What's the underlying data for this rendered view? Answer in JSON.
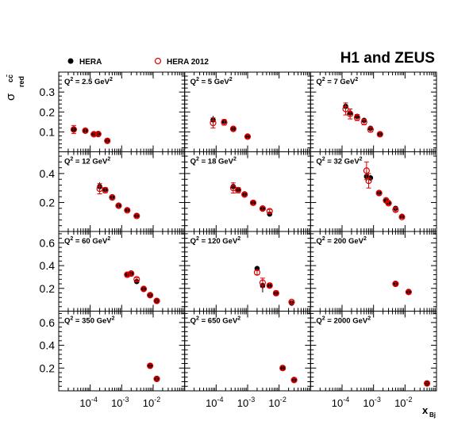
{
  "title": "H1 and ZEUS",
  "legend": [
    {
      "label": "HERA",
      "marker": "filled-circle",
      "color": "#000000"
    },
    {
      "label": "HERA 2012",
      "marker": "open-circle",
      "color": "#e00000"
    }
  ],
  "ylabel": {
    "main": "σ",
    "sup": "cc̄",
    "sub": "red"
  },
  "xlabel": {
    "main": "x",
    "sub": "Bj"
  },
  "chart_data": {
    "type": "scatter",
    "x_scale": "log",
    "xlim": [
      1e-05,
      0.1
    ],
    "x_ticks": [
      {
        "value": 0.0001,
        "base": "10",
        "exp": "-4"
      },
      {
        "value": 0.001,
        "base": "10",
        "exp": "-3"
      },
      {
        "value": 0.01,
        "base": "10",
        "exp": "-2"
      }
    ],
    "rows": [
      {
        "ylim": [
          0,
          0.4
        ],
        "yticks": [
          0.1,
          0.2,
          0.3
        ],
        "ytick_labels": [
          "0.1",
          "0.2",
          "0.3"
        ]
      },
      {
        "ylim": [
          0,
          0.55
        ],
        "yticks": [
          0.2,
          0.4
        ],
        "ytick_labels": [
          "0.2",
          "0.4"
        ]
      },
      {
        "ylim": [
          0,
          0.7
        ],
        "yticks": [
          0.2,
          0.4,
          0.6
        ],
        "ytick_labels": [
          "0.2",
          "0.4",
          "0.6"
        ]
      },
      {
        "ylim": [
          0,
          0.7
        ],
        "yticks": [
          0.2,
          0.4,
          0.6
        ],
        "ytick_labels": [
          "0.2",
          "0.4",
          "0.6"
        ]
      }
    ],
    "panels": [
      {
        "label": "Q² = 2.5 GeV²",
        "q2": "2.5",
        "row": 0,
        "col": 0,
        "hera": [
          [
            3e-05,
            0.113,
            0.018
          ],
          [
            7e-05,
            0.108,
            0.008
          ],
          [
            0.00013,
            0.09,
            0.006
          ],
          [
            0.00018,
            0.09,
            0.005
          ],
          [
            0.00035,
            0.056,
            0.006
          ]
        ],
        "hera2012": [
          [
            3e-05,
            0.112,
            0.02
          ],
          [
            7e-05,
            0.106,
            0.01
          ],
          [
            0.00013,
            0.088,
            0.007
          ],
          [
            0.00018,
            0.089,
            0.006
          ],
          [
            0.00035,
            0.055,
            0.007
          ]
        ]
      },
      {
        "label": "Q² = 5 GeV²",
        "q2": "5",
        "row": 0,
        "col": 1,
        "hera": [
          [
            8e-05,
            0.16,
            0.02
          ],
          [
            0.00018,
            0.152,
            0.012
          ],
          [
            0.00035,
            0.118,
            0.008
          ],
          [
            0.001,
            0.078,
            0.007
          ]
        ],
        "hera2012": [
          [
            8e-05,
            0.145,
            0.025
          ],
          [
            0.00018,
            0.148,
            0.014
          ],
          [
            0.00035,
            0.115,
            0.01
          ],
          [
            0.001,
            0.076,
            0.008
          ]
        ]
      },
      {
        "label": "Q² = 7 GeV²",
        "q2": "7",
        "row": 0,
        "col": 2,
        "hera": [
          [
            0.00013,
            0.228,
            0.02
          ],
          [
            0.00018,
            0.195,
            0.018
          ],
          [
            0.0003,
            0.178,
            0.012
          ],
          [
            0.0005,
            0.158,
            0.012
          ],
          [
            0.0008,
            0.118,
            0.01
          ],
          [
            0.0016,
            0.09,
            0.008
          ]
        ],
        "hera2012": [
          [
            0.00013,
            0.215,
            0.03
          ],
          [
            0.00018,
            0.19,
            0.025
          ],
          [
            0.0003,
            0.172,
            0.015
          ],
          [
            0.0005,
            0.15,
            0.014
          ],
          [
            0.0008,
            0.112,
            0.012
          ],
          [
            0.0016,
            0.088,
            0.01
          ]
        ]
      },
      {
        "label": "Q² = 12 GeV²",
        "q2": "12",
        "row": 1,
        "col": 0,
        "hera": [
          [
            0.0002,
            0.31,
            0.03
          ],
          [
            0.0003,
            0.29,
            0.015
          ],
          [
            0.0005,
            0.24,
            0.012
          ],
          [
            0.0008,
            0.18,
            0.01
          ],
          [
            0.0015,
            0.15,
            0.01
          ],
          [
            0.003,
            0.11,
            0.008
          ]
        ],
        "hera2012": [
          [
            0.0002,
            0.295,
            0.035
          ],
          [
            0.0003,
            0.285,
            0.018
          ],
          [
            0.0005,
            0.235,
            0.014
          ],
          [
            0.0008,
            0.178,
            0.012
          ],
          [
            0.0015,
            0.146,
            0.012
          ],
          [
            0.003,
            0.107,
            0.01
          ]
        ]
      },
      {
        "label": "Q² = 18 GeV²",
        "q2": "18",
        "row": 1,
        "col": 1,
        "hera": [
          [
            0.00035,
            0.31,
            0.03
          ],
          [
            0.0005,
            0.29,
            0.015
          ],
          [
            0.0008,
            0.26,
            0.012
          ],
          [
            0.0015,
            0.2,
            0.01
          ],
          [
            0.003,
            0.16,
            0.01
          ],
          [
            0.005,
            0.12,
            0.008
          ]
        ],
        "hera2012": [
          [
            0.00035,
            0.3,
            0.035
          ],
          [
            0.0005,
            0.285,
            0.018
          ],
          [
            0.0008,
            0.255,
            0.014
          ],
          [
            0.0015,
            0.198,
            0.012
          ],
          [
            0.003,
            0.158,
            0.012
          ],
          [
            0.005,
            0.14,
            0.012
          ]
        ]
      },
      {
        "label": "Q² = 32 GeV²",
        "q2": "32",
        "row": 1,
        "col": 2,
        "hera": [
          [
            0.0006,
            0.38,
            0.03
          ],
          [
            0.0008,
            0.37,
            0.02
          ],
          [
            0.0015,
            0.27,
            0.012
          ],
          [
            0.0025,
            0.21,
            0.01
          ],
          [
            0.003,
            0.2,
            0.01
          ],
          [
            0.005,
            0.16,
            0.01
          ],
          [
            0.008,
            0.105,
            0.008
          ]
        ],
        "hera2012": [
          [
            0.0006,
            0.42,
            0.06
          ],
          [
            0.0007,
            0.35,
            0.05
          ],
          [
            0.0015,
            0.265,
            0.014
          ],
          [
            0.0025,
            0.215,
            0.014
          ],
          [
            0.003,
            0.195,
            0.012
          ],
          [
            0.005,
            0.15,
            0.012
          ],
          [
            0.008,
            0.1,
            0.01
          ]
        ]
      },
      {
        "label": "Q² = 60 GeV²",
        "q2": "60",
        "row": 2,
        "col": 0,
        "hera": [
          [
            0.0015,
            0.325,
            0.015
          ],
          [
            0.002,
            0.335,
            0.015
          ],
          [
            0.003,
            0.26,
            0.012
          ],
          [
            0.005,
            0.195,
            0.01
          ],
          [
            0.008,
            0.14,
            0.01
          ],
          [
            0.013,
            0.09,
            0.008
          ]
        ],
        "hera2012": [
          [
            0.0015,
            0.32,
            0.018
          ],
          [
            0.002,
            0.33,
            0.018
          ],
          [
            0.003,
            0.28,
            0.014
          ],
          [
            0.005,
            0.195,
            0.012
          ],
          [
            0.008,
            0.14,
            0.012
          ],
          [
            0.013,
            0.09,
            0.01
          ]
        ]
      },
      {
        "label": "Q² = 120 GeV²",
        "q2": "120",
        "row": 2,
        "col": 1,
        "hera": [
          [
            0.002,
            0.375,
            0.015
          ],
          [
            0.003,
            0.225,
            0.06
          ],
          [
            0.005,
            0.22,
            0.015
          ],
          [
            0.008,
            0.155,
            0.012
          ],
          [
            0.025,
            0.07,
            0.01
          ]
        ],
        "hera2012": [
          [
            0.002,
            0.34,
            0.02
          ],
          [
            0.003,
            0.25,
            0.04
          ],
          [
            0.005,
            0.225,
            0.018
          ],
          [
            0.008,
            0.158,
            0.014
          ],
          [
            0.025,
            0.08,
            0.012
          ]
        ]
      },
      {
        "label": "Q² = 200 GeV²",
        "q2": "200",
        "row": 2,
        "col": 2,
        "hera": [
          [
            0.005,
            0.24,
            0.01
          ],
          [
            0.013,
            0.17,
            0.01
          ]
        ],
        "hera2012": [
          [
            0.005,
            0.24,
            0.012
          ],
          [
            0.013,
            0.168,
            0.012
          ]
        ]
      },
      {
        "label": "Q² = 350 GeV²",
        "q2": "350",
        "row": 3,
        "col": 0,
        "hera": [
          [
            0.008,
            0.22,
            0.01
          ],
          [
            0.013,
            0.105,
            0.01
          ]
        ],
        "hera2012": [
          [
            0.008,
            0.22,
            0.012
          ],
          [
            0.013,
            0.105,
            0.012
          ]
        ]
      },
      {
        "label": "Q² = 650 GeV²",
        "q2": "650",
        "row": 3,
        "col": 1,
        "hera": [
          [
            0.013,
            0.2,
            0.015
          ],
          [
            0.03,
            0.095,
            0.01
          ]
        ],
        "hera2012": [
          [
            0.013,
            0.2,
            0.018
          ],
          [
            0.03,
            0.095,
            0.012
          ]
        ]
      },
      {
        "label": "Q² = 2000 GeV²",
        "q2": "2000",
        "row": 3,
        "col": 2,
        "hera": [
          [
            0.05,
            0.065,
            0.008
          ]
        ],
        "hera2012": [
          [
            0.05,
            0.065,
            0.01
          ]
        ]
      }
    ]
  }
}
